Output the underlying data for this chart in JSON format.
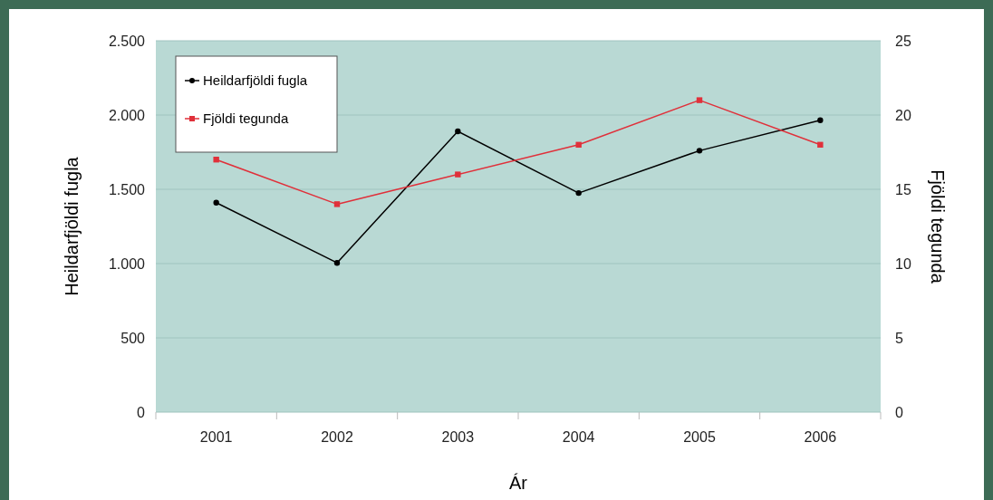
{
  "chart_data": {
    "type": "line",
    "xlabel": "Ár",
    "ylabel": "Heildarfjöldi fugla",
    "y2label": "Fjöldi tegunda",
    "categories": [
      "2001",
      "2002",
      "2003",
      "2004",
      "2005",
      "2006"
    ],
    "series": [
      {
        "name": "Heildarfjöldi fugla",
        "color": "#000000",
        "marker": "circle",
        "values": [
          1410,
          1005,
          1890,
          1475,
          1760,
          1965
        ]
      },
      {
        "name": "Fjöldi tegunda",
        "color": "#e0303a",
        "marker": "square",
        "axis": "y2",
        "values": [
          17,
          14,
          16,
          18,
          21,
          18
        ]
      }
    ],
    "ylim": [
      0,
      2500
    ],
    "yticks": [
      0,
      500,
      {
        "value": 1000,
        "label": "1.000"
      },
      {
        "value": 1500,
        "label": "1.500"
      },
      {
        "value": 2000,
        "label": "2.000"
      },
      {
        "value": 2500,
        "label": "2.500"
      }
    ],
    "y2lim": [
      0,
      25
    ],
    "y2ticks": [
      0,
      5,
      10,
      15,
      20,
      25
    ],
    "grid": "y",
    "legend": "top left"
  }
}
